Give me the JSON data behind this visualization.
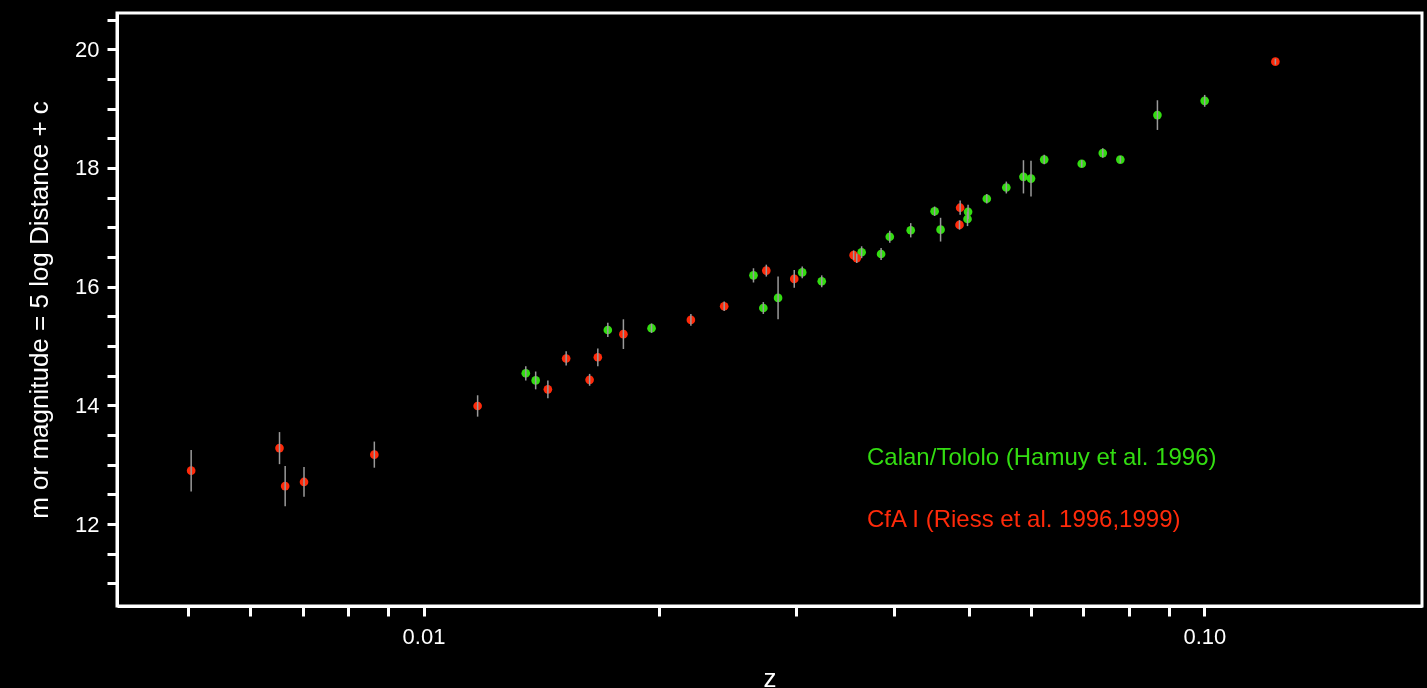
{
  "chart_data": {
    "type": "scatter",
    "xlabel": "z",
    "ylabel": "m or magnitude = 5 log Distance + c",
    "log": "x",
    "grid": false,
    "legend": "bottom right",
    "marker": "circle",
    "xlim": [
      0.00405,
      0.19
    ],
    "ylim": [
      10.62,
      20.61
    ],
    "xticks": [
      {
        "value": 0.005,
        "label": null
      },
      {
        "value": 0.006,
        "label": null
      },
      {
        "value": 0.007,
        "label": null
      },
      {
        "value": 0.008,
        "label": null
      },
      {
        "value": 0.009,
        "label": null
      },
      {
        "value": 0.01,
        "label": "0.01"
      },
      {
        "value": 0.02,
        "label": null
      },
      {
        "value": 0.03,
        "label": null
      },
      {
        "value": 0.04,
        "label": null
      },
      {
        "value": 0.05,
        "label": null
      },
      {
        "value": 0.06,
        "label": null
      },
      {
        "value": 0.07,
        "label": null
      },
      {
        "value": 0.08,
        "label": null
      },
      {
        "value": 0.09,
        "label": null
      },
      {
        "value": 0.1,
        "label": "0.10"
      }
    ],
    "yticks": [
      {
        "value": 11,
        "label": null
      },
      {
        "value": 11.5,
        "label": null
      },
      12,
      {
        "value": 12.5,
        "label": null
      },
      {
        "value": 13,
        "label": null
      },
      {
        "value": 13.5,
        "label": null
      },
      14,
      {
        "value": 14.5,
        "label": null
      },
      {
        "value": 15,
        "label": null
      },
      {
        "value": 15.5,
        "label": null
      },
      16,
      {
        "value": 16.5,
        "label": null
      },
      {
        "value": 17,
        "label": null
      },
      {
        "value": 17.5,
        "label": null
      },
      18,
      {
        "value": 18.5,
        "label": null
      },
      {
        "value": 19,
        "label": null
      },
      {
        "value": 19.5,
        "label": null
      },
      20,
      {
        "value": 20.5,
        "label": null
      }
    ],
    "series": [
      {
        "name": "Calan/Tololo (Hamuy et al. 1996)",
        "color": "#33dd11",
        "x": [
          0.01352,
          0.01392,
          0.01722,
          0.01959,
          0.02646,
          0.02724,
          0.02845,
          0.03055,
          0.03236,
          0.0364,
          0.03855,
          0.03955,
          0.04207,
          0.04514,
          0.04594,
          0.04974,
          0.04982,
          0.05265,
          0.05577,
          0.05866,
          0.05998,
          0.06236,
          0.06966,
          0.07412,
          0.07806,
          0.08708,
          0.1001
        ],
        "values": [
          14.54,
          14.42,
          15.27,
          15.3,
          16.19,
          15.64,
          15.81,
          16.24,
          16.09,
          16.58,
          16.55,
          16.84,
          16.95,
          17.27,
          16.96,
          17.14,
          17.26,
          17.48,
          17.67,
          17.85,
          17.82,
          18.14,
          18.07,
          18.25,
          18.14,
          18.89,
          19.13
        ],
        "errors": [
          0.12,
          0.15,
          0.12,
          0.08,
          0.12,
          0.1,
          0.36,
          0.1,
          0.1,
          0.1,
          0.1,
          0.1,
          0.12,
          0.08,
          0.2,
          0.12,
          0.12,
          0.08,
          0.1,
          0.28,
          0.3,
          0.08,
          0.06,
          0.08,
          0.06,
          0.25,
          0.1
        ]
      },
      {
        "name": "CfA I (Riess et al. 1996,1999)",
        "color": "#ff2a0a",
        "x": [
          0.00504,
          0.00654,
          0.00665,
          0.00703,
          0.00865,
          0.01173,
          0.01443,
          0.01523,
          0.01632,
          0.01672,
          0.01803,
          0.022,
          0.02427,
          0.02748,
          0.02984,
          0.03555,
          0.03588,
          0.04858,
          0.04867,
          0.1233
        ],
        "values": [
          12.9,
          13.28,
          12.64,
          12.71,
          13.17,
          13.99,
          14.27,
          14.79,
          14.43,
          14.81,
          15.2,
          15.44,
          15.67,
          16.27,
          16.13,
          16.53,
          16.48,
          17.04,
          17.33,
          19.79
        ],
        "errors": [
          0.35,
          0.27,
          0.34,
          0.25,
          0.22,
          0.18,
          0.15,
          0.12,
          0.1,
          0.15,
          0.25,
          0.1,
          0.08,
          0.1,
          0.15,
          0.08,
          0.08,
          0.08,
          0.12,
          0.05
        ]
      }
    ]
  }
}
